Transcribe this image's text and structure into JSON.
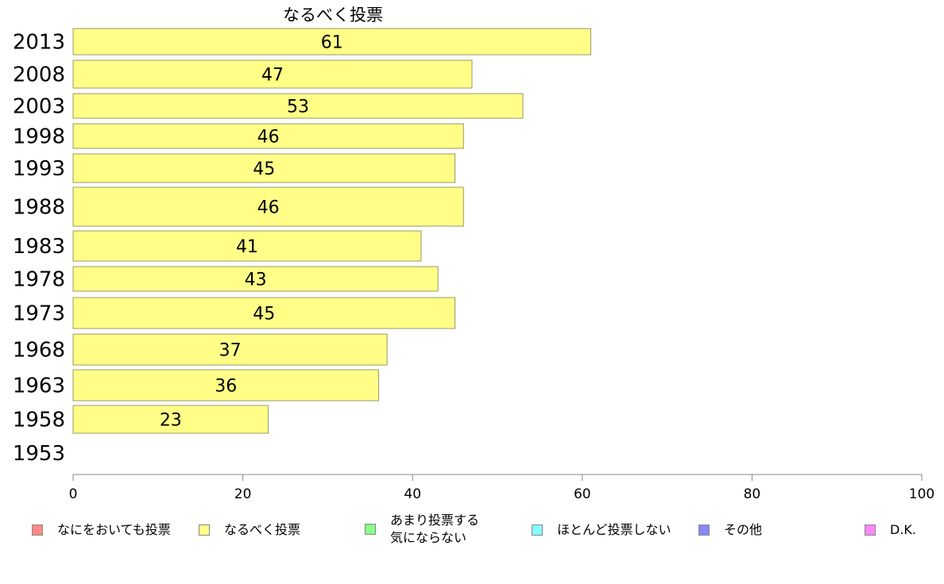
{
  "chart_data": {
    "type": "bar",
    "orientation": "horizontal",
    "title": "なるべく投票",
    "categories": [
      "2013",
      "2008",
      "2003",
      "1998",
      "1993",
      "1988",
      "1983",
      "1978",
      "1973",
      "1968",
      "1963",
      "1958",
      "1953"
    ],
    "values": [
      61,
      47,
      53,
      46,
      45,
      46,
      41,
      43,
      45,
      37,
      36,
      23,
      null
    ],
    "value_labels": [
      "61",
      "47",
      "53",
      "46",
      "45",
      "46",
      "41",
      "43",
      "45",
      "37",
      "36",
      "23",
      ""
    ],
    "xlim": [
      0,
      100
    ],
    "x_ticks": [
      "0",
      "20",
      "40",
      "60",
      "80",
      "100"
    ],
    "xlabel": "",
    "ylabel": "",
    "grid": false,
    "legend_position": "bottom",
    "bar_color": "#ffff88",
    "legend": [
      {
        "label": "なにをおいても投票",
        "color": "#ff8888"
      },
      {
        "label": "なるべく投票",
        "color": "#ffff88"
      },
      {
        "label": "あまり投票する気にならない",
        "line1": "あまり投票する",
        "line2": "気にならない",
        "color": "#88ff88"
      },
      {
        "label": "ほとんど投票しない",
        "color": "#88ffff"
      },
      {
        "label": "その他",
        "color": "#8888ff"
      },
      {
        "label": "D.K.",
        "color": "#ff88ff"
      }
    ]
  }
}
